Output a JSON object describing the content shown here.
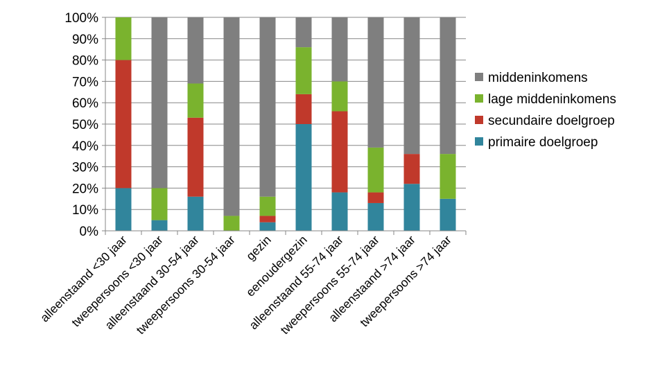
{
  "chart_data": {
    "type": "bar",
    "stacked": true,
    "percent": true,
    "title": "",
    "xlabel": "",
    "ylabel": "",
    "ylim": [
      0,
      100
    ],
    "yticks": [
      "0%",
      "10%",
      "20%",
      "30%",
      "40%",
      "50%",
      "60%",
      "70%",
      "80%",
      "90%",
      "100%"
    ],
    "grid": true,
    "legend_position": "right",
    "categories": [
      "alleenstaand <30 jaar",
      "tweepersoons <30 jaar",
      "alleenstaand 30-54 jaar",
      "tweepersoons 30-54 jaar",
      "gezin",
      "eenoudergezin",
      "alleenstaand 55-74 jaar",
      "tweepersoons 55-74 jaar",
      "alleenstaand >74 jaar",
      "tweepersoons >74 jaar"
    ],
    "series": [
      {
        "name": "primaire doelgroep",
        "color": "#31859c",
        "values": [
          20,
          5,
          16,
          0,
          4,
          50,
          18,
          13,
          22,
          15
        ]
      },
      {
        "name": "secundaire doelgroep",
        "color": "#c0392b",
        "values": [
          60,
          0,
          37,
          0,
          3,
          14,
          38,
          5,
          14,
          0
        ]
      },
      {
        "name": "lage middeninkomens",
        "color": "#7ab32e",
        "values": [
          20,
          15,
          16,
          7,
          9,
          22,
          14,
          21,
          0,
          21
        ]
      },
      {
        "name": "middeninkomens",
        "color": "#7f7f7f",
        "values": [
          0,
          80,
          31,
          93,
          84,
          14,
          30,
          61,
          64,
          64
        ]
      }
    ],
    "legend_order": [
      "middeninkomens",
      "lage middeninkomens",
      "secundaire doelgroep",
      "primaire doelgroep"
    ]
  }
}
